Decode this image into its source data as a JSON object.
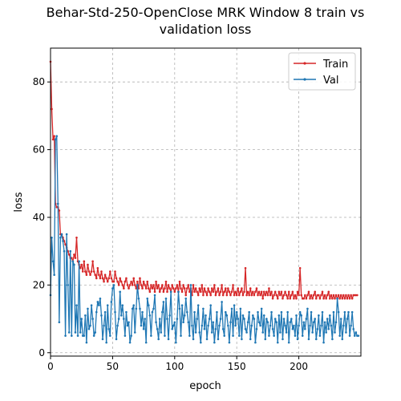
{
  "chart_data": {
    "type": "line",
    "title_line1": "Behar-Std-250-OpenClose MRK Window 8 train vs",
    "title_line2": "validation loss",
    "xlabel": "epoch",
    "ylabel": "loss",
    "xlim": [
      0,
      250
    ],
    "ylim": [
      -1,
      90
    ],
    "xticks": [
      0,
      50,
      100,
      150,
      200
    ],
    "yticks": [
      0,
      20,
      40,
      60,
      80
    ],
    "grid": true,
    "legend_position": "top-right",
    "series": [
      {
        "name": "Train",
        "color": "#d62728",
        "values": [
          86,
          72,
          63,
          64,
          44,
          43,
          43,
          42,
          35,
          35,
          34,
          33,
          32,
          31,
          30,
          29,
          28,
          28,
          27,
          29,
          28,
          34,
          27,
          26,
          25,
          26,
          24,
          27,
          24,
          23,
          26,
          24,
          23,
          24,
          27,
          24,
          23,
          22,
          25,
          23,
          22,
          24,
          22,
          21,
          23,
          22,
          21,
          22,
          24,
          22,
          21,
          21,
          24,
          22,
          21,
          20,
          22,
          21,
          20,
          19,
          21,
          22,
          20,
          19,
          20,
          21,
          20,
          22,
          20,
          19,
          21,
          19,
          22,
          20,
          19,
          21,
          20,
          19,
          21,
          19,
          18,
          20,
          19,
          20,
          18,
          21,
          19,
          20,
          18,
          19,
          20,
          18,
          19,
          21,
          18,
          20,
          19,
          18,
          20,
          19,
          18,
          19,
          20,
          18,
          21,
          19,
          18,
          20,
          19,
          17,
          19,
          20,
          18,
          19,
          17,
          20,
          18,
          19,
          18,
          17,
          19,
          18,
          20,
          17,
          19,
          18,
          17,
          19,
          18,
          17,
          19,
          18,
          20,
          17,
          18,
          19,
          17,
          18,
          20,
          17,
          18,
          19,
          17,
          19,
          18,
          17,
          18,
          20,
          17,
          18,
          17,
          19,
          17,
          18,
          19,
          17,
          18,
          25,
          17,
          18,
          17,
          19,
          17,
          18,
          17,
          18,
          19,
          17,
          18,
          17,
          18,
          16,
          18,
          17,
          18,
          17,
          19,
          17,
          18,
          16,
          17,
          18,
          17,
          16,
          18,
          17,
          18,
          16,
          17,
          18,
          17,
          16,
          18,
          16,
          17,
          18,
          16,
          17,
          16,
          18,
          17,
          25,
          17,
          16,
          16,
          17,
          16,
          17,
          18,
          16,
          17,
          16,
          17,
          18,
          16,
          17,
          17,
          16,
          17,
          18,
          16,
          17,
          16,
          17,
          18,
          16,
          17,
          16,
          17,
          16,
          17,
          16,
          17,
          16,
          17,
          16,
          17,
          16,
          17,
          16,
          17,
          16,
          17,
          16,
          17,
          17,
          17,
          17
        ]
      },
      {
        "name": "Val",
        "color": "#1f77b4",
        "values": [
          17,
          34,
          27,
          23,
          63,
          64,
          44,
          9,
          34,
          35,
          33,
          30,
          5,
          35,
          20,
          6,
          30,
          5,
          27,
          26,
          6,
          14,
          5,
          27,
          6,
          10,
          5,
          5,
          11,
          3,
          13,
          7,
          8,
          14,
          10,
          5,
          6,
          12,
          15,
          14,
          16,
          11,
          4,
          8,
          12,
          3,
          14,
          7,
          5,
          15,
          19,
          20,
          12,
          4,
          8,
          10,
          18,
          11,
          14,
          10,
          5,
          12,
          8,
          9,
          3,
          5,
          13,
          14,
          6,
          13,
          20,
          16,
          13,
          8,
          12,
          7,
          10,
          3,
          16,
          14,
          11,
          5,
          12,
          13,
          17,
          9,
          7,
          4,
          10,
          6,
          12,
          15,
          5,
          16,
          10,
          4,
          11,
          18,
          7,
          8,
          9,
          3,
          10,
          18,
          13,
          5,
          14,
          9,
          11,
          16,
          12,
          9,
          5,
          20,
          8,
          4,
          12,
          6,
          10,
          14,
          6,
          3,
          8,
          13,
          7,
          11,
          4,
          8,
          10,
          14,
          6,
          9,
          3,
          7,
          12,
          4,
          8,
          10,
          15,
          7,
          5,
          12,
          11,
          8,
          3,
          9,
          13,
          5,
          14,
          8,
          12,
          10,
          5,
          13,
          4,
          11,
          10,
          7,
          6,
          9,
          12,
          4,
          8,
          11,
          10,
          3,
          7,
          12,
          9,
          8,
          13,
          6,
          11,
          4,
          10,
          9,
          5,
          8,
          12,
          7,
          5,
          10,
          9,
          3,
          11,
          6,
          12,
          4,
          10,
          8,
          6,
          12,
          3,
          9,
          10,
          7,
          8,
          5,
          11,
          4,
          8,
          12,
          11,
          5,
          9,
          7,
          10,
          13,
          4,
          8,
          12,
          6,
          9,
          10,
          4,
          7,
          11,
          5,
          8,
          12,
          3,
          9,
          6,
          10,
          7,
          11,
          8,
          4,
          12,
          6,
          9,
          16,
          12,
          5,
          10,
          4,
          8,
          12,
          6,
          10,
          12,
          5,
          8,
          12,
          7,
          5,
          6,
          5,
          5
        ]
      }
    ]
  }
}
